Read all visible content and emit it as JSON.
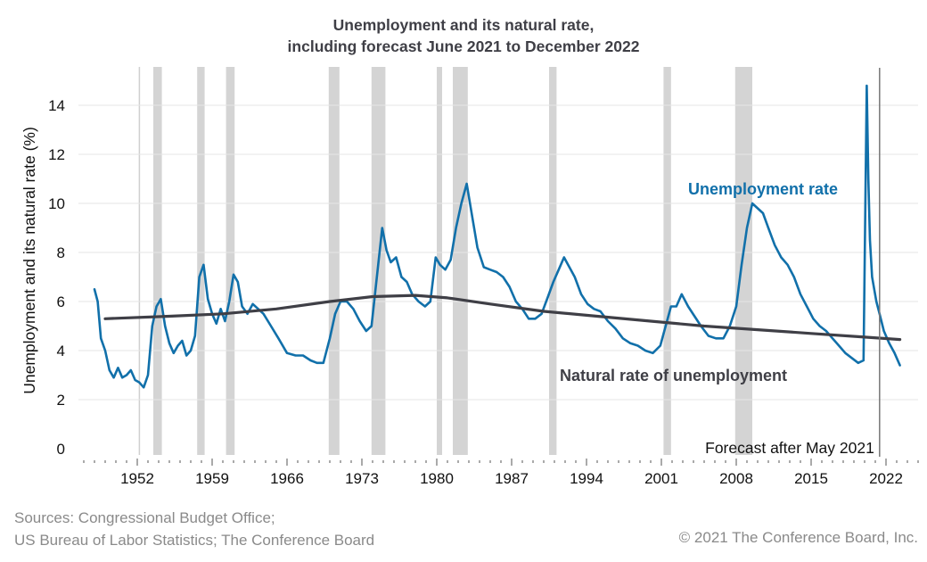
{
  "chart_data": {
    "type": "line",
    "title": "Unemployment and its natural rate,",
    "subtitle": "including forecast June 2021 to December 2022",
    "ylabel": "Unemployment and its natural rate (%)",
    "xlabel": "",
    "ylim": [
      0,
      15
    ],
    "xlim": [
      1946.5,
      2025
    ],
    "yticks": [
      0,
      2,
      4,
      6,
      8,
      10,
      12,
      14
    ],
    "xticks": [
      1952,
      1959,
      1966,
      1973,
      1980,
      1987,
      1994,
      2001,
      2008,
      2015,
      2022
    ],
    "grid": "horizontal",
    "recessions": [
      [
        1953.5,
        1954.3
      ],
      [
        1957.6,
        1958.3
      ],
      [
        1960.3,
        1961.1
      ],
      [
        1969.9,
        1970.9
      ],
      [
        1973.9,
        1975.2
      ],
      [
        1980.0,
        1980.5
      ],
      [
        1981.5,
        1982.9
      ],
      [
        1990.5,
        1991.2
      ],
      [
        2001.2,
        2001.9
      ],
      [
        2007.9,
        2009.5
      ]
    ],
    "forecast_marker": {
      "x": 2021.4,
      "label": "Forecast after May 2021"
    },
    "series": [
      {
        "name": "Unemployment rate",
        "color": "#1170aa",
        "x": [
          1948.0,
          1948.3,
          1948.6,
          1949.0,
          1949.4,
          1949.8,
          1950.2,
          1950.6,
          1951.0,
          1951.4,
          1951.8,
          1952.2,
          1952.6,
          1953.0,
          1953.4,
          1953.8,
          1954.2,
          1954.6,
          1955.0,
          1955.4,
          1955.8,
          1956.2,
          1956.6,
          1957.0,
          1957.4,
          1957.8,
          1958.2,
          1958.6,
          1959.0,
          1959.4,
          1959.8,
          1960.2,
          1960.6,
          1961.0,
          1961.4,
          1961.8,
          1962.3,
          1962.8,
          1963.3,
          1963.8,
          1964.5,
          1965.2,
          1966.0,
          1966.8,
          1967.5,
          1968.2,
          1968.8,
          1969.4,
          1970.0,
          1970.5,
          1971.0,
          1971.6,
          1972.2,
          1972.8,
          1973.4,
          1973.9,
          1974.4,
          1974.9,
          1975.3,
          1975.7,
          1976.2,
          1976.7,
          1977.2,
          1977.7,
          1978.3,
          1978.9,
          1979.4,
          1979.9,
          1980.3,
          1980.8,
          1981.3,
          1981.8,
          1982.3,
          1982.8,
          1983.3,
          1983.8,
          1984.4,
          1985.0,
          1985.6,
          1986.2,
          1986.8,
          1987.4,
          1988.0,
          1988.6,
          1989.2,
          1989.8,
          1990.4,
          1990.9,
          1991.4,
          1991.9,
          1992.4,
          1992.9,
          1993.5,
          1994.1,
          1994.7,
          1995.3,
          1996.0,
          1996.7,
          1997.4,
          1998.1,
          1998.8,
          1999.5,
          2000.2,
          2000.9,
          2001.4,
          2001.9,
          2002.4,
          2002.9,
          2003.5,
          2004.1,
          2004.7,
          2005.4,
          2006.1,
          2006.8,
          2007.4,
          2008.0,
          2008.5,
          2009.0,
          2009.5,
          2010.0,
          2010.5,
          2011.0,
          2011.6,
          2012.2,
          2012.8,
          2013.4,
          2014.0,
          2014.6,
          2015.2,
          2015.8,
          2016.4,
          2017.0,
          2017.6,
          2018.2,
          2018.8,
          2019.4,
          2019.9,
          2020.2,
          2020.35,
          2020.5,
          2020.7,
          2020.9,
          2021.1,
          2021.4,
          2021.8,
          2022.3,
          2022.8,
          2023.3
        ],
        "values": [
          6.5,
          6.0,
          4.5,
          4.0,
          3.2,
          2.9,
          3.3,
          2.9,
          3.0,
          3.2,
          2.8,
          2.7,
          2.5,
          3.0,
          5.0,
          5.8,
          6.1,
          5.0,
          4.3,
          3.9,
          4.2,
          4.4,
          3.8,
          4.0,
          4.6,
          7.0,
          7.5,
          6.1,
          5.5,
          5.1,
          5.7,
          5.2,
          6.0,
          7.1,
          6.8,
          5.8,
          5.5,
          5.9,
          5.7,
          5.5,
          5.0,
          4.5,
          3.9,
          3.8,
          3.8,
          3.6,
          3.5,
          3.5,
          4.5,
          5.5,
          6.0,
          6.0,
          5.7,
          5.2,
          4.8,
          5.0,
          7.0,
          9.0,
          8.1,
          7.6,
          7.8,
          7.0,
          6.8,
          6.3,
          6.0,
          5.8,
          6.0,
          7.8,
          7.5,
          7.3,
          7.7,
          9.0,
          10.0,
          10.8,
          9.5,
          8.2,
          7.4,
          7.3,
          7.2,
          7.0,
          6.6,
          6.0,
          5.7,
          5.3,
          5.3,
          5.5,
          6.2,
          6.8,
          7.3,
          7.8,
          7.4,
          7.0,
          6.3,
          5.9,
          5.7,
          5.6,
          5.2,
          4.9,
          4.5,
          4.3,
          4.2,
          4.0,
          3.9,
          4.2,
          5.0,
          5.8,
          5.8,
          6.3,
          5.8,
          5.4,
          5.0,
          4.6,
          4.5,
          4.5,
          5.0,
          5.8,
          7.5,
          9.0,
          10.0,
          9.8,
          9.6,
          9.0,
          8.3,
          7.8,
          7.5,
          7.0,
          6.3,
          5.8,
          5.3,
          5.0,
          4.8,
          4.5,
          4.2,
          3.9,
          3.7,
          3.5,
          3.6,
          14.8,
          11.0,
          8.5,
          7.0,
          6.5,
          6.0,
          5.5,
          4.8,
          4.3,
          3.9,
          3.4
        ]
      },
      {
        "name": "Natural rate of unemployment",
        "color": "#3f3f46",
        "x": [
          1949,
          1955,
          1960,
          1965,
          1970,
          1974,
          1978,
          1981,
          1985,
          1990,
          1995,
          2000,
          2005,
          2010,
          2015,
          2020,
          2023.3
        ],
        "values": [
          5.3,
          5.4,
          5.5,
          5.7,
          6.0,
          6.2,
          6.25,
          6.15,
          5.9,
          5.6,
          5.4,
          5.2,
          5.0,
          4.85,
          4.7,
          4.55,
          4.45
        ]
      }
    ],
    "labels": {
      "unemployment": "Unemployment rate",
      "natural": "Natural rate of unemployment"
    }
  },
  "footer": {
    "source_line1": "Sources: Congressional Budget Office;",
    "source_line2": "US Bureau of Labor Statistics; The Conference Board",
    "copyright": "© 2021 The Conference Board, Inc."
  }
}
